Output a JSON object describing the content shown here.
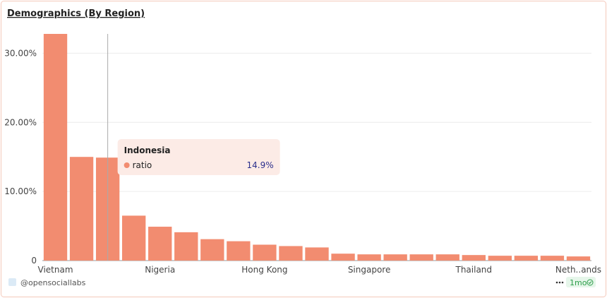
{
  "chart_data": {
    "type": "bar",
    "title": "Demographics (By Region)",
    "categories": [
      "Vietnam",
      null,
      null,
      null,
      "Nigeria",
      null,
      null,
      null,
      "Hong Kong",
      null,
      null,
      null,
      "Singapore",
      null,
      null,
      null,
      "Thailand",
      null,
      null,
      null,
      "Neth..ands"
    ],
    "series": [
      {
        "name": "ratio",
        "color": "#f28c70",
        "values": [
          32.8,
          15.0,
          14.9,
          6.5,
          4.9,
          4.1,
          3.1,
          2.8,
          2.3,
          2.1,
          1.9,
          1.0,
          0.9,
          0.9,
          0.9,
          0.9,
          0.8,
          0.7,
          0.7,
          0.7,
          0.6
        ],
        "value_labels": [
          null,
          null,
          "14.9%",
          null,
          null,
          null,
          null,
          null,
          null,
          null,
          null,
          null,
          null,
          null,
          null,
          null,
          null,
          null,
          null,
          null,
          null
        ]
      }
    ],
    "tooltip_title": "Indonesia",
    "ylim": [
      0,
      32.8
    ],
    "yticks": [
      0,
      {
        "value": 10,
        "label": "10.00%"
      },
      {
        "value": 20,
        "label": "20.00%"
      },
      {
        "value": 30,
        "label": "30.00%"
      }
    ],
    "grid": true
  },
  "footer": {
    "handle": "@opensociallabs",
    "age": "1mo"
  }
}
